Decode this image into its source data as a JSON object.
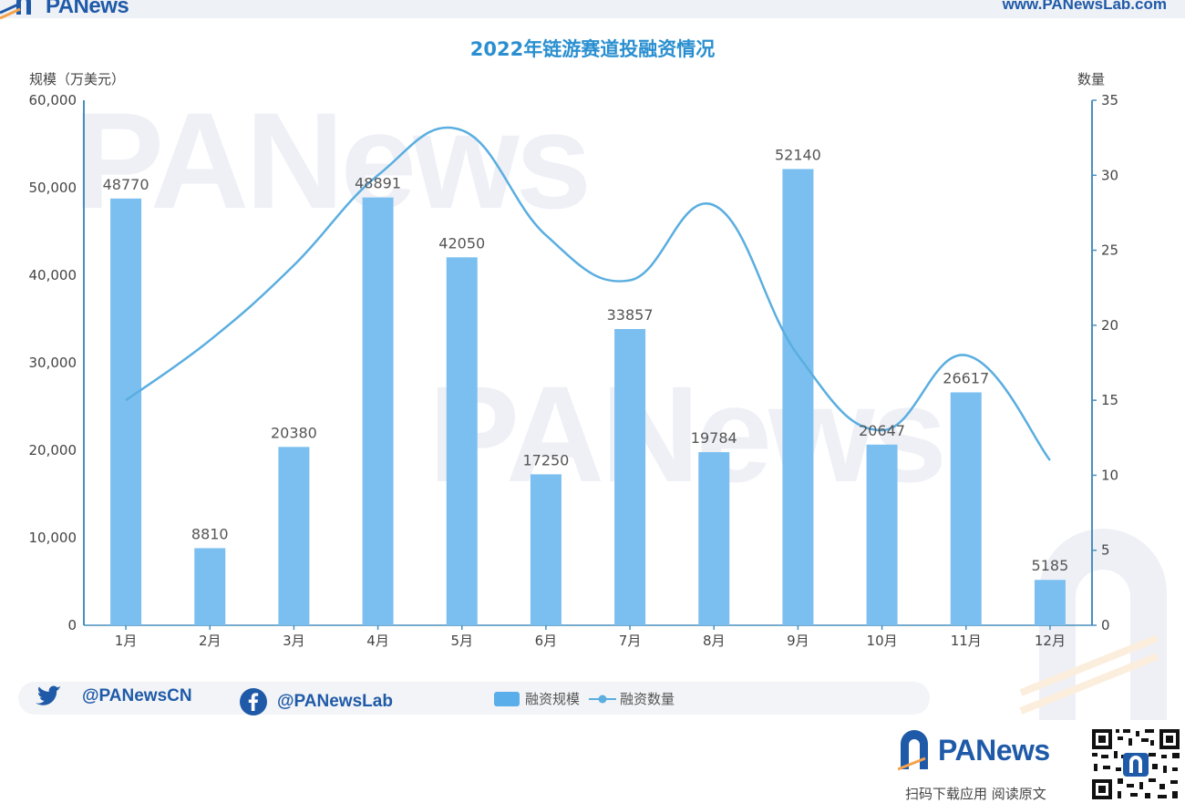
{
  "header": {
    "brand": "PANews",
    "url": "www.PANewsLab.com"
  },
  "chart_data": {
    "type": "bar",
    "title": "2022年链游赛道投融资情况",
    "ylabel_left": "规模（万美元）",
    "ylabel_right": "数量",
    "categories": [
      "1月",
      "2月",
      "3月",
      "4月",
      "5月",
      "6月",
      "7月",
      "8月",
      "9月",
      "10月",
      "11月",
      "12月"
    ],
    "y_left_ticks": [
      "0",
      "10,000",
      "20,000",
      "30,000",
      "40,000",
      "50,000",
      "60,000"
    ],
    "y_right_ticks": [
      "0",
      "5",
      "10",
      "15",
      "20",
      "25",
      "30",
      "35"
    ],
    "ylim_left": [
      0,
      60000
    ],
    "ylim_right": [
      0,
      35
    ],
    "series": [
      {
        "name": "融资规模",
        "type": "bar",
        "axis": "left",
        "color": "#7bbff0",
        "values": [
          48770,
          8810,
          20380,
          48891,
          42050,
          17250,
          33857,
          19784,
          52140,
          20647,
          26617,
          5185
        ]
      },
      {
        "name": "融资数量",
        "type": "line",
        "axis": "right",
        "color": "#5aaee0",
        "values": [
          15,
          19,
          24,
          30,
          33,
          26,
          23,
          28,
          18,
          13,
          18,
          11
        ]
      }
    ],
    "legend_position": "bottom-center",
    "grid": false
  },
  "footer": {
    "twitter": "@PANewsCN",
    "facebook": "@PANewsLab",
    "brand": "PANews",
    "scan_text": "扫码下载应用 阅读原文"
  },
  "colors": {
    "brand_blue": "#1f5aa8",
    "title_blue": "#2a8fd0",
    "bar_blue": "#7bbff0",
    "line_blue": "#5aaee0",
    "brand_orange": "#f5a24b"
  }
}
